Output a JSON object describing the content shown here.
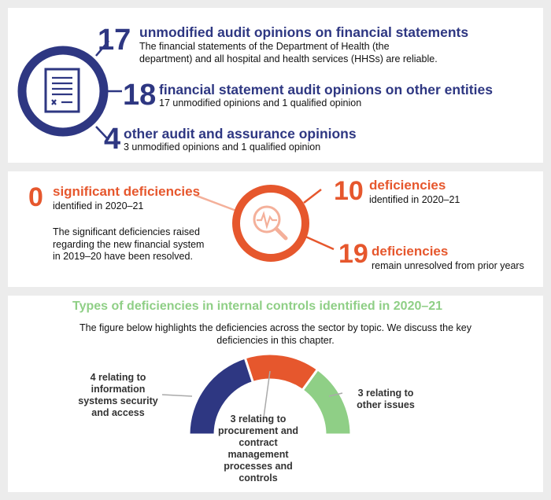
{
  "audit": {
    "items": [
      {
        "number": "17",
        "title": "unmodified audit opinions on financial statements",
        "description": "The financial statements of the Department of Health (the department) and all hospital and health services (HHSs) are reliable."
      },
      {
        "number": "18",
        "title": "financial statement audit opinions on other entities",
        "description": "17 unmodified opinions and 1 qualified opinion"
      },
      {
        "number": "4",
        "title": "other audit and assurance opinions",
        "description": "3 unmodified opinions and 1 qualified opinion"
      }
    ],
    "icon": "document-icon",
    "color": "#2e3782"
  },
  "deficiencies": {
    "significant": {
      "number": "0",
      "title": "significant deficiencies",
      "subtitle": "identified in 2020–21",
      "note": "The significant deficiencies raised regarding the new financial system in 2019–20 have been resolved."
    },
    "identified": {
      "number": "10",
      "title": "deficiencies",
      "subtitle": "identified in 2020–21"
    },
    "unresolved": {
      "number": "19",
      "title": "deficiencies",
      "subtitle": "remain unresolved from prior years"
    },
    "icon": "magnifier-pulse-icon",
    "color": "#e6572d"
  },
  "types": {
    "title": "Types of deficiencies in internal controls identified in 2020–21",
    "description": "The figure below highlights the deficiencies across the sector by topic. We discuss the key deficiencies in this chapter.",
    "segments": [
      {
        "label": "4 relating to information systems security and access",
        "value": 4,
        "color": "#2e3782"
      },
      {
        "label": "3 relating to procurement and contract management processes and controls",
        "value": 3,
        "color": "#e6572d"
      },
      {
        "label": "3 relating to other issues",
        "value": 3,
        "color": "#8fcf86"
      }
    ]
  }
}
